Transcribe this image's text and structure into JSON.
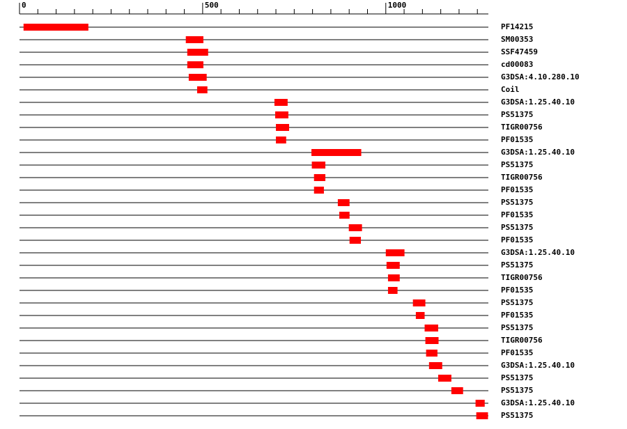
{
  "chart_data": {
    "type": "range",
    "categories": [
      "PF14215",
      "SM00353",
      "SSF47459",
      "cd00083",
      "G3DSA:4.10.280.10",
      "Coil",
      "G3DSA:1.25.40.10",
      "PS51375",
      "TIGR00756",
      "PF01535",
      "G3DSA:1.25.40.10",
      "PS51375",
      "TIGR00756",
      "PF01535",
      "PS51375",
      "PF01535",
      "PS51375",
      "PF01535",
      "G3DSA:1.25.40.10",
      "PS51375",
      "TIGR00756",
      "PF01535",
      "PS51375",
      "PF01535",
      "PS51375",
      "TIGR00756",
      "PF01535",
      "G3DSA:1.25.40.10",
      "PS51375",
      "PS51375",
      "G3DSA:1.25.40.10",
      "PS51375"
    ],
    "starts": [
      11,
      454,
      458,
      458,
      462,
      485,
      696,
      698,
      700,
      700,
      797,
      798,
      804,
      804,
      869,
      873,
      899,
      901,
      1000,
      1002,
      1006,
      1006,
      1074,
      1082,
      1106,
      1108,
      1110,
      1118,
      1143,
      1179,
      1245,
      1247
    ],
    "ends": [
      188,
      502,
      515,
      502,
      511,
      513,
      732,
      734,
      736,
      728,
      933,
      835,
      835,
      831,
      901,
      901,
      935,
      932,
      1051,
      1038,
      1038,
      1032,
      1108,
      1106,
      1143,
      1144,
      1141,
      1154,
      1179,
      1211,
      1270,
      1279
    ],
    "color": "#ff0000",
    "xlim": [
      0,
      1280
    ],
    "xticks": [
      0,
      500,
      1000
    ],
    "xminorticks": [
      50,
      100,
      150,
      200,
      250,
      300,
      350,
      400,
      450,
      550,
      600,
      650,
      700,
      750,
      800,
      850,
      900,
      950,
      1050,
      1100,
      1150,
      1200,
      1250
    ]
  }
}
